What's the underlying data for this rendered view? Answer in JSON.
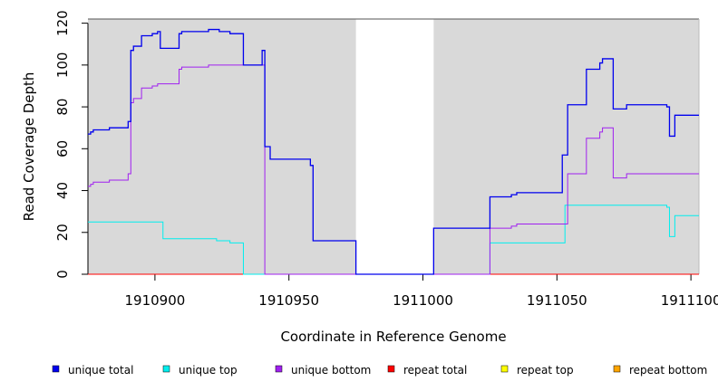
{
  "chart_data": {
    "type": "line",
    "xlabel": "Coordinate in Reference Genome",
    "ylabel": "Read Coverage Depth",
    "xlim": [
      1910875,
      1911103
    ],
    "ylim": [
      0,
      122
    ],
    "x_ticks": [
      1910900,
      1910950,
      1911000,
      1911050,
      1911100
    ],
    "x_tick_labels": [
      "1910900",
      "1910950",
      "1911000",
      "1911050",
      "1911100"
    ],
    "y_ticks": [
      0,
      20,
      40,
      60,
      80,
      100,
      120
    ],
    "y_tick_labels": [
      "0",
      "20",
      "40",
      "60",
      "80",
      "100",
      "120"
    ],
    "background_color": "#d9d9d9",
    "shaded_regions": [
      [
        1910875,
        1910975
      ],
      [
        1911004,
        1911103
      ]
    ],
    "legend_position": "bottom",
    "series": [
      {
        "name": "unique total",
        "color": "#0000ee",
        "points": [
          [
            1910875,
            67
          ],
          [
            1910876,
            68
          ],
          [
            1910877,
            69
          ],
          [
            1910883,
            70
          ],
          [
            1910890,
            73
          ],
          [
            1910891,
            107
          ],
          [
            1910892,
            109
          ],
          [
            1910895,
            114
          ],
          [
            1910899,
            115
          ],
          [
            1910901,
            116
          ],
          [
            1910902,
            108
          ],
          [
            1910909,
            115
          ],
          [
            1910910,
            116
          ],
          [
            1910920,
            117
          ],
          [
            1910924,
            116
          ],
          [
            1910928,
            115
          ],
          [
            1910933,
            100
          ],
          [
            1910939,
            100
          ],
          [
            1910940,
            107
          ],
          [
            1910941,
            61
          ],
          [
            1910943,
            55
          ],
          [
            1910958,
            52
          ],
          [
            1910959,
            16
          ],
          [
            1910975,
            0
          ],
          [
            1911004,
            22
          ],
          [
            1911025,
            37
          ],
          [
            1911033,
            38
          ],
          [
            1911035,
            39
          ],
          [
            1911052,
            57
          ],
          [
            1911054,
            81
          ],
          [
            1911061,
            98
          ],
          [
            1911066,
            101
          ],
          [
            1911067,
            103
          ],
          [
            1911071,
            79
          ],
          [
            1911076,
            81
          ],
          [
            1911091,
            80
          ],
          [
            1911092,
            66
          ],
          [
            1911094,
            76
          ],
          [
            1911103,
            76
          ]
        ]
      },
      {
        "name": "unique top",
        "color": "#00eeee",
        "points": [
          [
            1910875,
            25
          ],
          [
            1910902,
            25
          ],
          [
            1910903,
            17
          ],
          [
            1910923,
            16
          ],
          [
            1910928,
            15
          ],
          [
            1910933,
            0
          ],
          [
            1911025,
            15
          ],
          [
            1911052,
            15
          ],
          [
            1911053,
            33
          ],
          [
            1911091,
            32
          ],
          [
            1911092,
            18
          ],
          [
            1911094,
            28
          ],
          [
            1911103,
            28
          ]
        ]
      },
      {
        "name": "unique bottom",
        "color": "#a020f0",
        "points": [
          [
            1910875,
            42
          ],
          [
            1910876,
            43
          ],
          [
            1910877,
            44
          ],
          [
            1910883,
            45
          ],
          [
            1910890,
            48
          ],
          [
            1910891,
            82
          ],
          [
            1910892,
            84
          ],
          [
            1910895,
            89
          ],
          [
            1910899,
            90
          ],
          [
            1910901,
            91
          ],
          [
            1910909,
            98
          ],
          [
            1910910,
            99
          ],
          [
            1910920,
            100
          ],
          [
            1910941,
            0
          ],
          [
            1911025,
            22
          ],
          [
            1911033,
            23
          ],
          [
            1911035,
            24
          ],
          [
            1911054,
            48
          ],
          [
            1911061,
            65
          ],
          [
            1911066,
            68
          ],
          [
            1911067,
            70
          ],
          [
            1911071,
            46
          ],
          [
            1911076,
            48
          ],
          [
            1911103,
            48
          ]
        ]
      },
      {
        "name": "repeat total",
        "color": "#ff0000",
        "points": [
          [
            1910875,
            0
          ],
          [
            1911103,
            0
          ]
        ]
      },
      {
        "name": "repeat top",
        "color": "#ffff00",
        "points": [
          [
            1910875,
            0
          ],
          [
            1911103,
            0
          ]
        ]
      },
      {
        "name": "repeat bottom",
        "color": "#ffa500",
        "points": [
          [
            1910875,
            0
          ],
          [
            1911103,
            0
          ]
        ]
      }
    ]
  }
}
